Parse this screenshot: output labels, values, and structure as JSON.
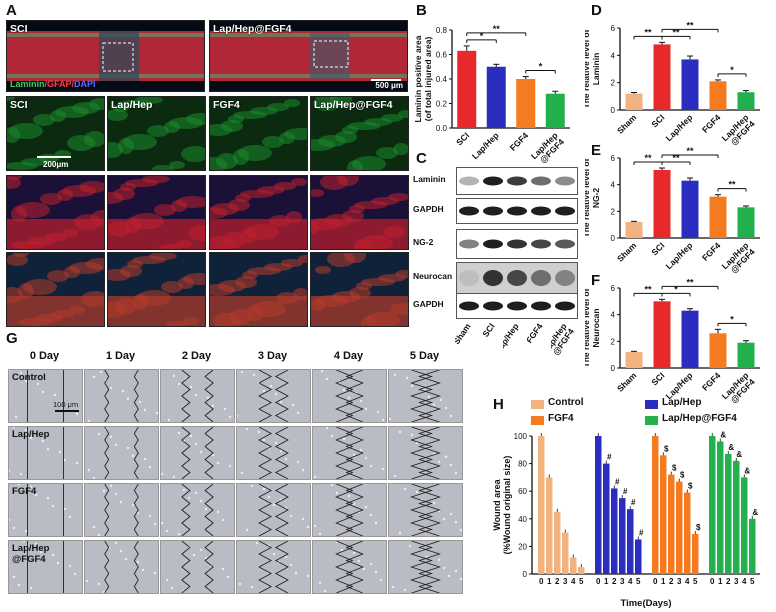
{
  "panels": {
    "A": "A",
    "B": "B",
    "C": "C",
    "D": "D",
    "E": "E",
    "F": "F",
    "G": "G",
    "H": "H"
  },
  "panelA": {
    "top_left_label": "SCI",
    "top_right_label": "Lap/Hep@FGF4",
    "stain_laminin": "Laminin",
    "stain_gfap": "/GFAP/",
    "stain_dapi": "DAPI",
    "scale_top": "500 μm",
    "scale_zoom": "200μm",
    "columns": [
      "SCI",
      "Lap/Hep",
      "FGF4",
      "Lap/Hep@FGF4"
    ],
    "colors": {
      "laminin": "#39d353",
      "gfap": "#ff4040",
      "dapi": "#5b6bff"
    }
  },
  "panelC": {
    "bands": [
      "Laminin",
      "GAPDH",
      "NG-2",
      "Neurocan",
      "GAPDH"
    ],
    "lanes": [
      "Sham",
      "SCI",
      "Lap/Hep",
      "FGF4",
      "Lap/Hep\n@FGF4"
    ]
  },
  "panelG": {
    "days": [
      "0 Day",
      "1 Day",
      "2 Day",
      "3 Day",
      "4 Day",
      "5 Day"
    ],
    "rows": [
      "Control",
      "Lap/Hep",
      "FGF4",
      "Lap/Hep\n@FGF4"
    ],
    "scale": "100 μm"
  },
  "chart_data": [
    {
      "id": "B",
      "type": "bar",
      "categories": [
        "SCI",
        "Lap/Hep",
        "FGF4",
        "Lap/Hep\n@FGF4"
      ],
      "values": [
        0.63,
        0.5,
        0.4,
        0.28
      ],
      "errors": [
        0.04,
        0.02,
        0.02,
        0.02
      ],
      "colors": [
        "#e8292b",
        "#2a2dbd",
        "#f47b20",
        "#21b04b"
      ],
      "ylabel": "Laminin positive area\n(of total injured area)",
      "ylim": [
        0,
        0.8
      ],
      "yticks": [
        0.0,
        0.2,
        0.4,
        0.6,
        0.8
      ],
      "sig": [
        {
          "from": 0,
          "to": 1,
          "label": "*"
        },
        {
          "from": 0,
          "to": 2,
          "label": "**"
        },
        {
          "from": 2,
          "to": 3,
          "label": "*"
        }
      ]
    },
    {
      "id": "D",
      "type": "bar",
      "categories": [
        "Sham",
        "SCI",
        "Lap/Hep",
        "FGF4",
        "Lap/Hep\n@FGF4"
      ],
      "values": [
        1.2,
        4.8,
        3.7,
        2.1,
        1.3
      ],
      "errors": [
        0.08,
        0.15,
        0.25,
        0.1,
        0.12
      ],
      "colors": [
        "#f2b27e",
        "#e8292b",
        "#2a2dbd",
        "#f47b20",
        "#21b04b"
      ],
      "ylabel": "The relative level of\nLaminin",
      "ylim": [
        0,
        6
      ],
      "yticks": [
        0,
        2,
        4,
        6
      ],
      "sig": [
        {
          "from": 0,
          "to": 1,
          "label": "**"
        },
        {
          "from": 1,
          "to": 2,
          "label": "**"
        },
        {
          "from": 1,
          "to": 3,
          "label": "**"
        },
        {
          "from": 3,
          "to": 4,
          "label": "*"
        }
      ]
    },
    {
      "id": "E",
      "type": "bar",
      "categories": [
        "Sham",
        "SCI",
        "Lap/Hep",
        "FGF4",
        "Lap/Hep\n@FGF4"
      ],
      "values": [
        1.2,
        5.1,
        4.3,
        3.1,
        2.3
      ],
      "errors": [
        0.05,
        0.15,
        0.2,
        0.15,
        0.1
      ],
      "colors": [
        "#f2b27e",
        "#e8292b",
        "#2a2dbd",
        "#f47b20",
        "#21b04b"
      ],
      "ylabel": "The relative level of\nNG-2",
      "ylim": [
        0,
        6
      ],
      "yticks": [
        0,
        2,
        4,
        6
      ],
      "sig": [
        {
          "from": 0,
          "to": 1,
          "label": "**"
        },
        {
          "from": 1,
          "to": 2,
          "label": "**"
        },
        {
          "from": 1,
          "to": 3,
          "label": "**"
        },
        {
          "from": 3,
          "to": 4,
          "label": "**"
        }
      ]
    },
    {
      "id": "F",
      "type": "bar",
      "categories": [
        "Sham",
        "SCI",
        "Lap/Hep",
        "FGF4",
        "Lap/Hep\n@FGF4"
      ],
      "values": [
        1.2,
        5.0,
        4.3,
        2.6,
        1.9
      ],
      "errors": [
        0.05,
        0.15,
        0.15,
        0.3,
        0.15
      ],
      "colors": [
        "#f2b27e",
        "#e8292b",
        "#2a2dbd",
        "#f47b20",
        "#21b04b"
      ],
      "ylabel": "The relative level of\nNeurocan",
      "ylim": [
        0,
        6
      ],
      "yticks": [
        0,
        2,
        4,
        6
      ],
      "sig": [
        {
          "from": 0,
          "to": 1,
          "label": "**"
        },
        {
          "from": 1,
          "to": 2,
          "label": "*"
        },
        {
          "from": 1,
          "to": 3,
          "label": "**"
        },
        {
          "from": 3,
          "to": 4,
          "label": "*"
        }
      ]
    },
    {
      "id": "H",
      "type": "bar",
      "xlabel": "Time(Days)",
      "ylabel": "Wound area\n(%Wound original size)",
      "ylim": [
        0,
        100
      ],
      "yticks": [
        0,
        20,
        40,
        60,
        80,
        100
      ],
      "x": [
        0,
        1,
        2,
        3,
        4,
        5
      ],
      "series": [
        {
          "name": "Control",
          "color": "#f2b27e",
          "values": [
            100,
            70,
            45,
            30,
            12,
            5
          ],
          "mark": ""
        },
        {
          "name": "Lap/Hep",
          "color": "#2a2dbd",
          "values": [
            100,
            80,
            62,
            55,
            47,
            25
          ],
          "mark": "#"
        },
        {
          "name": "FGF4",
          "color": "#f47b20",
          "values": [
            100,
            86,
            72,
            67,
            59,
            29
          ],
          "mark": "$"
        },
        {
          "name": "Lap/Hep@FGF4",
          "color": "#21b04b",
          "values": [
            100,
            96,
            87,
            82,
            70,
            40
          ],
          "mark": "&"
        }
      ]
    }
  ]
}
